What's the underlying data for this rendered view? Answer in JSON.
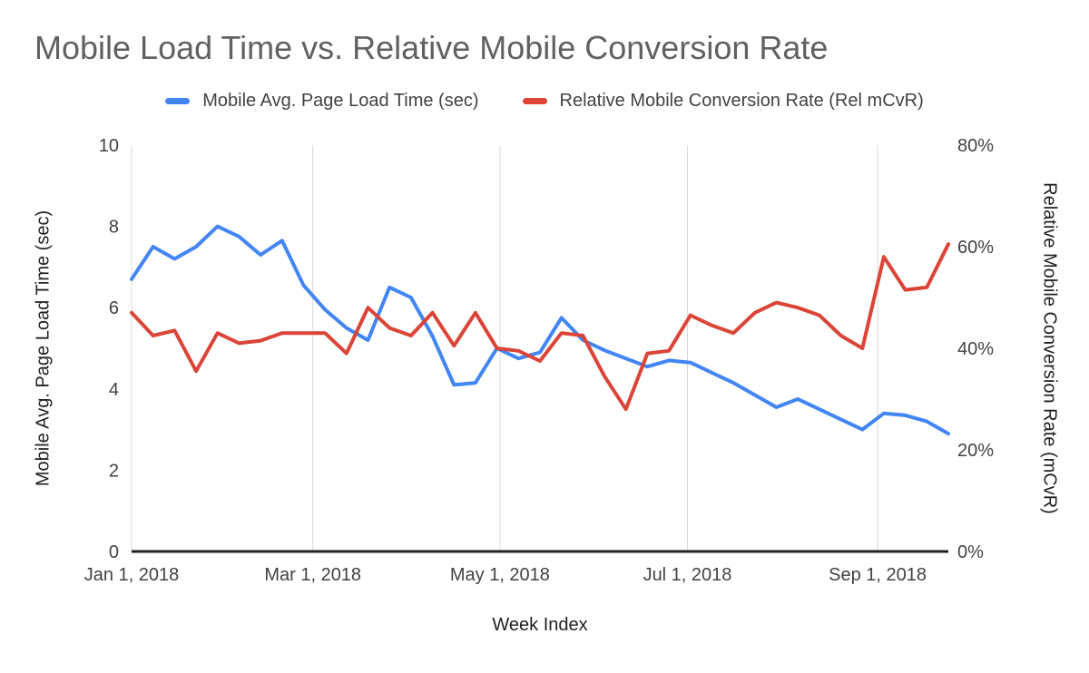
{
  "chart_data": {
    "type": "line",
    "title": "Mobile Load Time vs. Relative Mobile Conversion Rate",
    "x_axis_title": "Week Index",
    "legend_position": "top",
    "grid": {
      "vertical": true,
      "horizontal": false
    },
    "colors": {
      "background": "#ffffff",
      "gridline": "#d9d9d9",
      "axis_line": "#212121",
      "title_text": "#616161",
      "tick_text": "#424242",
      "axis_title_text": "#202124",
      "series_blue": "#4285f4",
      "series_red": "#db4437"
    },
    "left_axis": {
      "title": "Mobile Avg. Page Load Time (sec)",
      "min": 0,
      "max": 10,
      "ticks": [
        {
          "value": 0,
          "label": "0"
        },
        {
          "value": 2,
          "label": "2"
        },
        {
          "value": 4,
          "label": "4"
        },
        {
          "value": 6,
          "label": "6"
        },
        {
          "value": 8,
          "label": "8"
        },
        {
          "value": 10,
          "label": "10"
        }
      ]
    },
    "right_axis": {
      "title": "Relative Mobile Conversion Rate (mCvR)",
      "min": 0,
      "max": 80,
      "ticks": [
        {
          "value": 0,
          "label": "0%"
        },
        {
          "value": 20,
          "label": "20%"
        },
        {
          "value": 40,
          "label": "40%"
        },
        {
          "value": 60,
          "label": "60%"
        },
        {
          "value": 80,
          "label": "80%"
        }
      ]
    },
    "total_weeks": 38,
    "x_ticks": [
      {
        "label": "Jan 1, 2018",
        "week": 0
      },
      {
        "label": "Mar 1, 2018",
        "week": 8.43
      },
      {
        "label": "May 1, 2018",
        "week": 17.14
      },
      {
        "label": "Jul 1, 2018",
        "week": 25.86
      },
      {
        "label": "Sep 1, 2018",
        "week": 34.71
      }
    ],
    "series": [
      {
        "name": "Mobile Avg. Page Load Time (sec)",
        "axis": "left",
        "color": "#4285f4",
        "unit": "sec",
        "values": [
          6.7,
          7.5,
          7.2,
          7.5,
          8.0,
          7.75,
          7.3,
          7.65,
          6.55,
          5.95,
          5.5,
          5.2,
          6.5,
          6.25,
          5.3,
          4.1,
          4.15,
          5.0,
          4.75,
          4.9,
          5.75,
          5.2,
          4.95,
          4.75,
          4.55,
          4.7,
          4.65,
          4.4,
          4.15,
          3.85,
          3.55,
          3.75,
          3.5,
          3.25,
          3.0,
          3.4,
          3.35,
          3.2,
          2.9
        ]
      },
      {
        "name": "Relative Mobile Conversion Rate (Rel mCvR)",
        "axis": "right",
        "color": "#db4437",
        "unit": "%",
        "values": [
          47,
          42.5,
          43.5,
          35.5,
          43,
          41,
          41.5,
          43,
          43,
          43,
          39,
          48,
          44,
          42.5,
          47,
          40.5,
          47,
          40,
          39.5,
          37.5,
          43,
          42.5,
          34.5,
          28,
          39,
          39.5,
          46.5,
          44.5,
          43,
          47,
          49,
          48,
          46.5,
          42.5,
          40,
          58,
          51.5,
          52,
          60.5
        ]
      }
    ]
  }
}
